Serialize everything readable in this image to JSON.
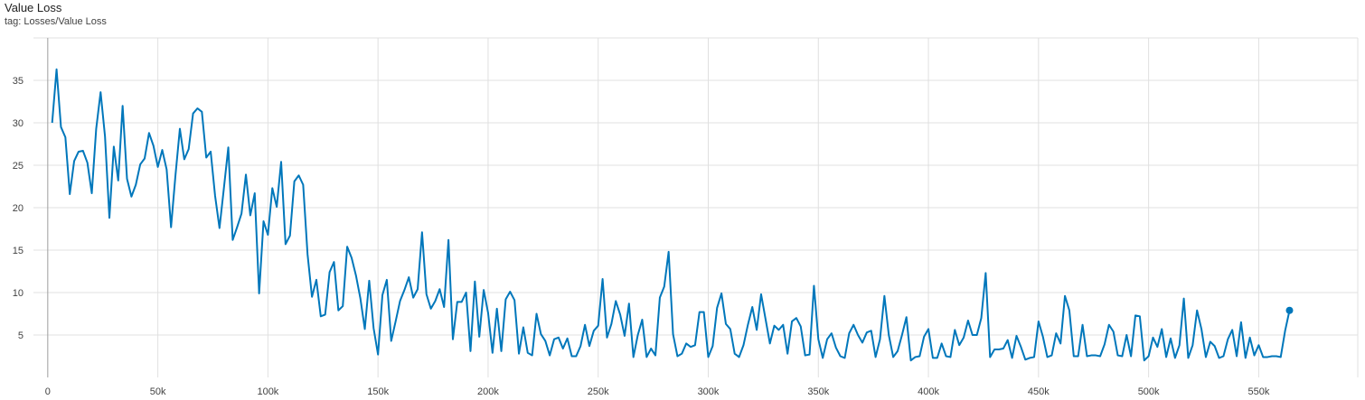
{
  "header": {
    "title": "Value Loss",
    "tag": "tag: Losses/Value Loss"
  },
  "chart_data": {
    "type": "line",
    "title": "Value Loss",
    "subtitle": "tag: Losses/Value Loss",
    "xlabel": "",
    "ylabel": "",
    "xlim": [
      -6500,
      595000
    ],
    "ylim": [
      0,
      40
    ],
    "xticks": [
      0,
      50000,
      100000,
      150000,
      200000,
      250000,
      300000,
      350000,
      400000,
      450000,
      500000,
      550000
    ],
    "xtick_labels": [
      "0",
      "50k",
      "100k",
      "150k",
      "200k",
      "250k",
      "300k",
      "350k",
      "400k",
      "450k",
      "500k",
      "550k"
    ],
    "yticks": [
      5,
      10,
      15,
      20,
      25,
      30,
      35
    ],
    "ytick_labels": [
      "5",
      "10",
      "15",
      "20",
      "25",
      "30",
      "35"
    ],
    "grid": true,
    "colors": {
      "series": "#0077bb",
      "grid": "#e0e0e0",
      "zero_axis": "#9e9e9e"
    },
    "series": [
      {
        "color": "#0077bb",
        "x_start": 2000,
        "x_step": 2000,
        "values": [
          30.0,
          36.3,
          29.5,
          28.3,
          21.6,
          25.5,
          26.6,
          26.7,
          25.3,
          21.7,
          29.3,
          33.6,
          28.4,
          18.8,
          27.2,
          23.2,
          32.0,
          23.4,
          21.3,
          22.7,
          25.1,
          25.8,
          28.8,
          27.3,
          24.8,
          26.8,
          24.5,
          17.7,
          23.8,
          29.3,
          25.7,
          26.9,
          31.1,
          31.7,
          31.3,
          25.9,
          26.6,
          21.4,
          17.6,
          22.3,
          27.1,
          16.2,
          17.7,
          19.3,
          23.9,
          19.1,
          21.7,
          9.9,
          18.4,
          16.8,
          22.3,
          20.1,
          25.4,
          15.7,
          16.7,
          23.1,
          23.8,
          22.7,
          14.5,
          9.5,
          11.5,
          7.2,
          7.4,
          12.4,
          13.6,
          7.9,
          8.4,
          15.4,
          14.1,
          12.0,
          9.3,
          5.7,
          11.4,
          5.8,
          2.7,
          9.7,
          11.5,
          4.3,
          6.6,
          9.0,
          10.3,
          11.8,
          9.4,
          10.4,
          17.1,
          9.8,
          8.1,
          9.0,
          10.4,
          8.3,
          16.2,
          4.5,
          8.9,
          8.9,
          10.0,
          3.1,
          11.3,
          4.8,
          10.3,
          7.6,
          2.9,
          8.1,
          3.1,
          9.2,
          10.1,
          9.1,
          2.8,
          5.9,
          2.9,
          2.6,
          7.5,
          5.1,
          4.3,
          2.6,
          4.5,
          4.7,
          3.4,
          4.6,
          2.5,
          2.5,
          3.7,
          6.2,
          3.7,
          5.5,
          6.1,
          11.6,
          4.7,
          6.3,
          9.0,
          7.4,
          4.9,
          8.7,
          2.4,
          5.0,
          6.8,
          2.4,
          3.4,
          2.6,
          9.4,
          10.7,
          14.8,
          5.1,
          2.5,
          2.8,
          4.0,
          3.6,
          3.8,
          7.7,
          7.7,
          2.4,
          3.7,
          8.2,
          9.9,
          6.3,
          5.7,
          2.8,
          2.4,
          3.8,
          6.2,
          8.3,
          5.6,
          9.8,
          6.9,
          4.0,
          6.1,
          5.6,
          6.2,
          2.8,
          6.6,
          7.0,
          6.0,
          2.6,
          2.7,
          10.8,
          4.5,
          2.3,
          4.5,
          5.2,
          3.5,
          2.5,
          2.3,
          5.2,
          6.2,
          5.0,
          4.1,
          5.3,
          5.5,
          2.4,
          4.5,
          9.6,
          5.0,
          2.4,
          3.1,
          5.0,
          7.1,
          2.0,
          2.4,
          2.5,
          4.8,
          5.7,
          2.3,
          2.3,
          4.0,
          2.5,
          2.4,
          5.6,
          3.8,
          4.7,
          6.7,
          5.0,
          5.0,
          7.0,
          12.3,
          2.4,
          3.3,
          3.3,
          3.4,
          4.4,
          2.3,
          4.9,
          3.6,
          2.1,
          2.3,
          2.4,
          6.6,
          4.8,
          2.4,
          2.6,
          5.2,
          4.0,
          9.6,
          7.9,
          2.5,
          2.5,
          6.2,
          2.5,
          2.6,
          2.6,
          2.5,
          3.9,
          6.2,
          5.4,
          2.6,
          2.5,
          5.0,
          2.5,
          7.3,
          7.2,
          2.0,
          2.5,
          4.7,
          3.6,
          5.7,
          2.4,
          4.6,
          2.3,
          3.8,
          9.3,
          2.3,
          3.8,
          7.9,
          5.7,
          2.4,
          4.2,
          3.7,
          2.3,
          2.5,
          4.5,
          5.6,
          2.5,
          6.5,
          2.3,
          4.7,
          2.6,
          3.8,
          2.4,
          2.4,
          2.5,
          2.5,
          2.4,
          5.5,
          7.9
        ]
      }
    ]
  }
}
